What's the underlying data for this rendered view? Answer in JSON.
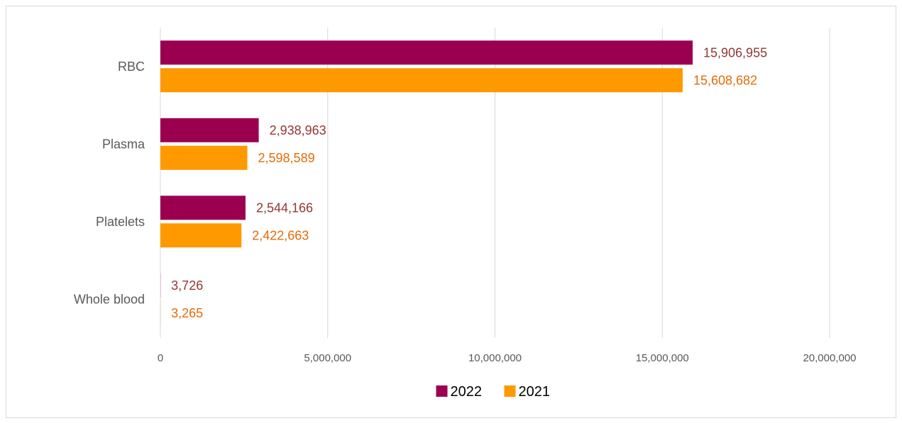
{
  "chart_data": {
    "type": "bar",
    "orientation": "horizontal",
    "categories": [
      "RBC",
      "Plasma",
      "Platelets",
      "Whole blood"
    ],
    "series": [
      {
        "name": "2022",
        "color": "#9B0050",
        "label_color": "#943634",
        "values": [
          15906955,
          2938963,
          2544166,
          3726
        ],
        "labels": [
          "15,906,955",
          "2,938,963",
          "2,544,166",
          "3,726"
        ]
      },
      {
        "name": "2021",
        "color": "#FF9900",
        "label_color": "#E36C09",
        "values": [
          15608682,
          2598589,
          2422663,
          3265
        ],
        "labels": [
          "15,608,682",
          "2,598,589",
          "2,422,663",
          "3,265"
        ]
      }
    ],
    "xlim": [
      0,
      20000000
    ],
    "xticks": [
      0,
      5000000,
      10000000,
      15000000,
      20000000
    ],
    "xtick_labels": [
      "0",
      "5,000,000",
      "10,000,000",
      "15,000,000",
      "20,000,000"
    ],
    "grid": "vertical",
    "legend_position": "bottom",
    "title": "",
    "xlabel": "",
    "ylabel": ""
  }
}
